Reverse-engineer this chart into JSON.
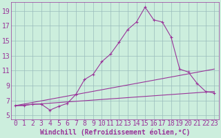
{
  "xlabel": "Windchill (Refroidissement éolien,°C)",
  "bg_color": "#cceedd",
  "line_color": "#993399",
  "grid_color": "#99bbbb",
  "xlim": [
    -0.5,
    23.5
  ],
  "ylim": [
    4.5,
    20.2
  ],
  "yticks": [
    5,
    7,
    9,
    11,
    13,
    15,
    17,
    19
  ],
  "xticks": [
    0,
    1,
    2,
    3,
    4,
    5,
    6,
    7,
    8,
    9,
    10,
    11,
    12,
    13,
    14,
    15,
    16,
    17,
    18,
    19,
    20,
    21,
    22,
    23
  ],
  "series1_x": [
    0,
    1,
    2,
    3,
    4,
    5,
    6,
    7,
    8,
    9,
    10,
    11,
    12,
    13,
    14,
    15,
    16,
    17,
    18,
    19,
    20,
    21,
    22,
    23
  ],
  "series1_y": [
    6.3,
    6.3,
    6.5,
    6.5,
    5.7,
    6.2,
    6.6,
    7.8,
    9.8,
    10.5,
    12.2,
    13.2,
    14.8,
    16.5,
    17.5,
    19.5,
    17.8,
    17.5,
    15.5,
    11.2,
    10.8,
    9.3,
    8.2,
    8.0
  ],
  "series2_x": [
    0,
    23
  ],
  "series2_y": [
    6.3,
    11.2
  ],
  "series3_x": [
    0,
    23
  ],
  "series3_y": [
    6.3,
    8.2
  ],
  "xlabel_fontsize": 7,
  "tick_fontsize": 7,
  "marker": "+"
}
